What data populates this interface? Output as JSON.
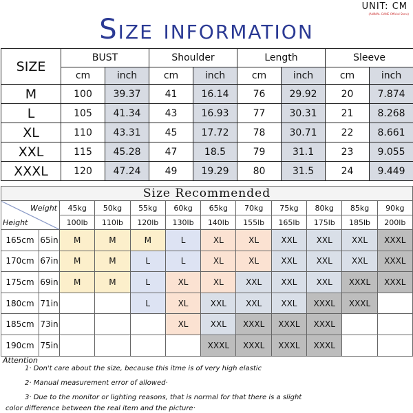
{
  "unit_label": "UNIT: CM",
  "unit_sub": "(ANIMAL GAME Official Store)",
  "title": "Size information",
  "size_table": {
    "size_header": "SIZE",
    "groups": [
      "BUST",
      "Shoulder",
      "Length",
      "Sleeve"
    ],
    "sub": [
      "cm",
      "inch"
    ],
    "rows": [
      [
        "M",
        "100",
        "39.37",
        "41",
        "16.14",
        "76",
        "29.92",
        "20",
        "7.874"
      ],
      [
        "L",
        "105",
        "41.34",
        "43",
        "16.93",
        "77",
        "30.31",
        "21",
        "8.268"
      ],
      [
        "XL",
        "110",
        "43.31",
        "45",
        "17.72",
        "78",
        "30.71",
        "22",
        "8.661"
      ],
      [
        "XXL",
        "115",
        "45.28",
        "47",
        "18.5",
        "79",
        "31.1",
        "23",
        "9.055"
      ],
      [
        "XXXL",
        "120",
        "47.24",
        "49",
        "19.29",
        "80",
        "31.5",
        "24",
        "9.449"
      ]
    ]
  },
  "recommend": {
    "title": "Size Recommended",
    "weight_label": "Weight",
    "height_label": "Height",
    "kg": [
      "45kg",
      "50kg",
      "55kg",
      "60kg",
      "65kg",
      "70kg",
      "75kg",
      "80kg",
      "85kg",
      "90kg"
    ],
    "lb": [
      "100lb",
      "110lb",
      "120lb",
      "130lb",
      "140lb",
      "155lb",
      "165lb",
      "175lb",
      "185lb",
      "200lb"
    ],
    "rows": [
      {
        "cm": "165cm",
        "in": "65in",
        "sizes": [
          "M",
          "M",
          "M",
          "L",
          "XL",
          "XL",
          "XXL",
          "XXL",
          "XXL",
          "XXXL"
        ]
      },
      {
        "cm": "170cm",
        "in": "67in",
        "sizes": [
          "M",
          "M",
          "L",
          "L",
          "XL",
          "XL",
          "XXL",
          "XXL",
          "XXL",
          "XXXL"
        ]
      },
      {
        "cm": "175cm",
        "in": "69in",
        "sizes": [
          "M",
          "M",
          "L",
          "XL",
          "XL",
          "XXL",
          "XXL",
          "XXL",
          "XXXL",
          "XXXL"
        ]
      },
      {
        "cm": "180cm",
        "in": "71in",
        "sizes": [
          "",
          "",
          "L",
          "XL",
          "XXL",
          "XXL",
          "XXL",
          "XXXL",
          "XXXL",
          ""
        ]
      },
      {
        "cm": "185cm",
        "in": "73in",
        "sizes": [
          "",
          "",
          "",
          "XL",
          "XXL",
          "XXXL",
          "XXXL",
          "XXXL",
          "",
          ""
        ]
      },
      {
        "cm": "190cm",
        "in": "75in",
        "sizes": [
          "",
          "",
          "",
          "",
          "XXXL",
          "XXXL",
          "XXXL",
          "XXXL",
          "",
          ""
        ]
      }
    ],
    "colors": {
      "M": "#fcefcb",
      "L": "#dde3f3",
      "XL": "#fbe2d2",
      "XXL": "#d9dfe8",
      "XXXL": "#bdbdbd"
    }
  },
  "attention": {
    "title": "Attention",
    "notes": [
      "1· Don't care about the size, because this itme is of very high elastic",
      "2· Manual measurement error of allowed·",
      "3·  Due to the monitor or lighting reasons, that is normal for that there is a slight",
      "color difference between the real item and the picture·"
    ]
  }
}
